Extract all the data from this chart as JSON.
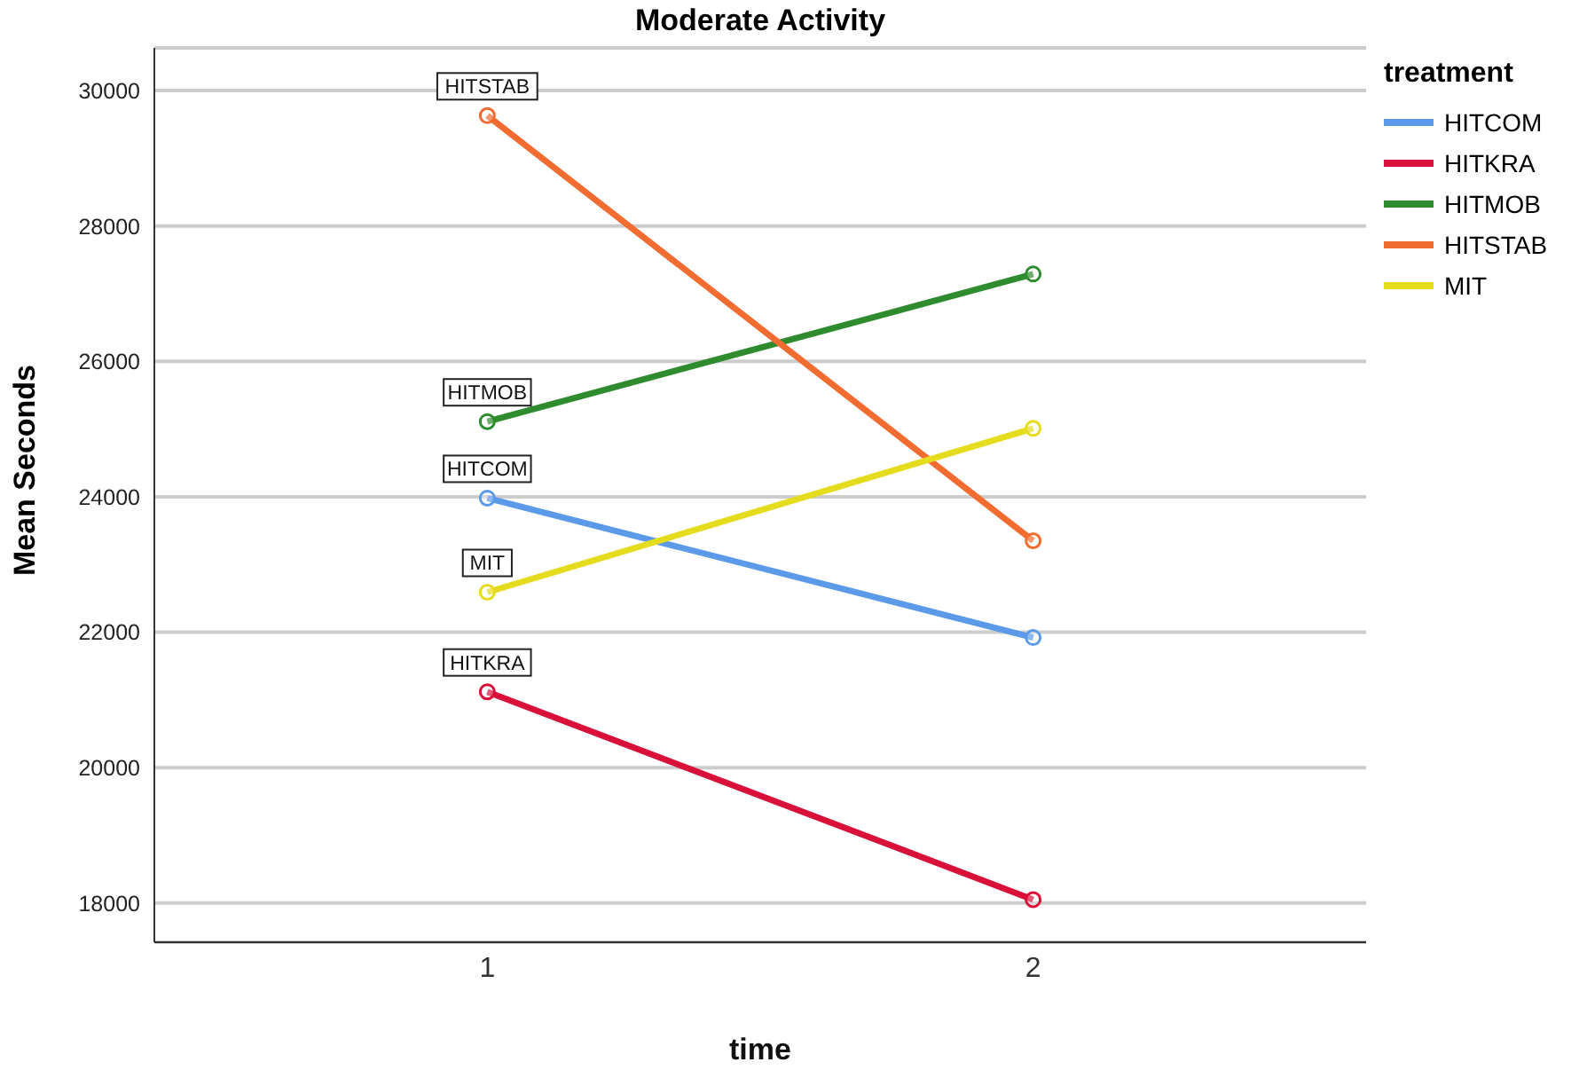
{
  "chart_data": {
    "type": "line",
    "title": "Moderate Activity",
    "xlabel": "time",
    "ylabel": "Mean Seconds",
    "legend_title": "treatment",
    "categories": [
      "1",
      "2"
    ],
    "series": [
      {
        "name": "HITCOM",
        "color": "#5b9ae8",
        "values": [
          23980,
          21920
        ]
      },
      {
        "name": "HITKRA",
        "color": "#d8103a",
        "values": [
          21120,
          18050
        ]
      },
      {
        "name": "HITMOB",
        "color": "#2e8b2e",
        "values": [
          25110,
          27290
        ]
      },
      {
        "name": "HITSTAB",
        "color": "#f26b30",
        "values": [
          29630,
          23350
        ]
      },
      {
        "name": "MIT",
        "color": "#e6dc1e",
        "values": [
          22590,
          25010
        ]
      }
    ],
    "annotations": [
      {
        "text": "HITSTAB",
        "x": "1",
        "y": 29630
      },
      {
        "text": "HITMOB",
        "x": "1",
        "y": 25110
      },
      {
        "text": "HITCOM",
        "x": "1",
        "y": 23980
      },
      {
        "text": "MIT",
        "x": "1",
        "y": 22590
      },
      {
        "text": "HITKRA",
        "x": "1",
        "y": 21120
      }
    ],
    "ylim": [
      17420,
      30630
    ],
    "yticks": [
      18000,
      20000,
      22000,
      24000,
      26000,
      28000,
      30000
    ],
    "grid": "y",
    "legend": "right",
    "marker": "circle",
    "line_style": "solid"
  }
}
